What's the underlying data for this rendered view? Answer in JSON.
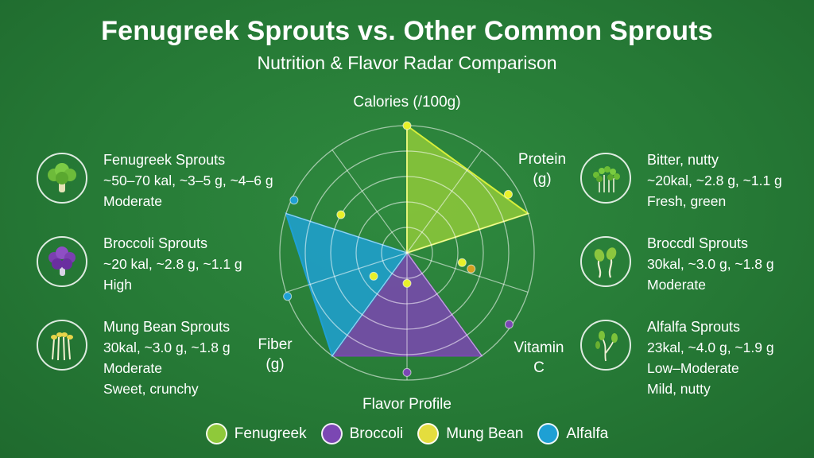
{
  "header": {
    "title": "Fenugreek Sprouts vs. Other Common Sprouts",
    "subtitle": "Nutrition & Flavor Radar Comparison"
  },
  "cards_left": [
    {
      "icon": "broccoli-floret-icon",
      "name": "Fenugreek Sprouts",
      "lines": [
        "~50–70 kal, ~3–5 g, ~4–6 g",
        "Moderate"
      ]
    },
    {
      "icon": "purple-broccoli-icon",
      "name": "Broccoli Sprouts",
      "lines": [
        "~20 kal, ~2.8 g, ~1.1 g",
        "High"
      ]
    },
    {
      "icon": "mung-bean-sprouts-icon",
      "name": "Mung Bean Sprouts",
      "lines": [
        "30kal, ~3.0 g, ~1.8 g",
        "Moderate",
        "Sweet, crunchy"
      ]
    }
  ],
  "cards_right": [
    {
      "icon": "sprout-bunch-icon",
      "name": "Bitter, nutty",
      "lines": [
        "~20kal, ~2.8 g, ~1.1 g",
        "Fresh, green"
      ]
    },
    {
      "icon": "bean-sprouts-icon",
      "name": "Broccdl Sprouts",
      "lines": [
        "30kal, ~3.0 g, ~1.8 g",
        "Moderate"
      ]
    },
    {
      "icon": "alfalfa-sprout-icon",
      "name": "Alfalfa Sprouts",
      "lines": [
        "23kal, ~4.0 g, ~1.9 g",
        "Low–Moderate",
        "Mild, nutty"
      ]
    }
  ],
  "chart_data": {
    "type": "radar",
    "axes": [
      "Calories (/100g)",
      "Protein (g)",
      "Vitamin C",
      "Flavor Profile",
      "Fiber (g)"
    ],
    "axis_label_lines": [
      [
        "Calories (/100g)"
      ],
      [
        "Protein",
        "(g)"
      ],
      [
        "Vitamin",
        "C"
      ],
      [
        "Flavor Profile"
      ],
      [
        "Fiber",
        "(g)"
      ]
    ],
    "rlim": [
      0,
      5
    ],
    "rings": 5,
    "series": [
      {
        "name": "Broccoli",
        "color": "#7b47b3",
        "values": [
          0,
          0,
          5,
          5,
          0
        ]
      },
      {
        "name": "Mung Bean",
        "color": "#c8d84a",
        "values": [
          0,
          0,
          0,
          0,
          0
        ]
      },
      {
        "name": "Alfalfa",
        "color": "#1ea0d4",
        "values": [
          0,
          0,
          0,
          5,
          5
        ]
      },
      {
        "name": "Fenugreek",
        "color": "#8fc93a",
        "values": [
          5,
          5,
          0,
          0,
          0
        ]
      }
    ],
    "markers": [
      {
        "color": "#e8f02a",
        "r": 5.0,
        "angle_deg": 0
      },
      {
        "color": "#e8f02a",
        "r": 4.6,
        "angle_deg": 60
      },
      {
        "color": "#e8f02a",
        "r": 2.2,
        "angle_deg": 100
      },
      {
        "color": "#e8f02a",
        "r": 1.2,
        "angle_deg": 180
      },
      {
        "color": "#e8f02a",
        "r": 1.6,
        "angle_deg": 235
      },
      {
        "color": "#e8f02a",
        "r": 3.0,
        "angle_deg": 300
      },
      {
        "color": "#d4a020",
        "r": 2.6,
        "angle_deg": 104
      },
      {
        "color": "#7b47b3",
        "r": 4.9,
        "angle_deg": 125
      },
      {
        "color": "#7b47b3",
        "r": 4.7,
        "angle_deg": 180
      },
      {
        "color": "#1ea0d4",
        "r": 4.9,
        "angle_deg": 295
      },
      {
        "color": "#1ea0d4",
        "r": 5.0,
        "angle_deg": 250
      }
    ]
  },
  "legend": [
    {
      "name": "Fenugreek",
      "color": "#8fc93a"
    },
    {
      "name": "Broccoli",
      "color": "#7b47b3"
    },
    {
      "name": "Mung Bean",
      "color": "#e4dd3e"
    },
    {
      "name": "Alfalfa",
      "color": "#1ea0d4"
    }
  ]
}
